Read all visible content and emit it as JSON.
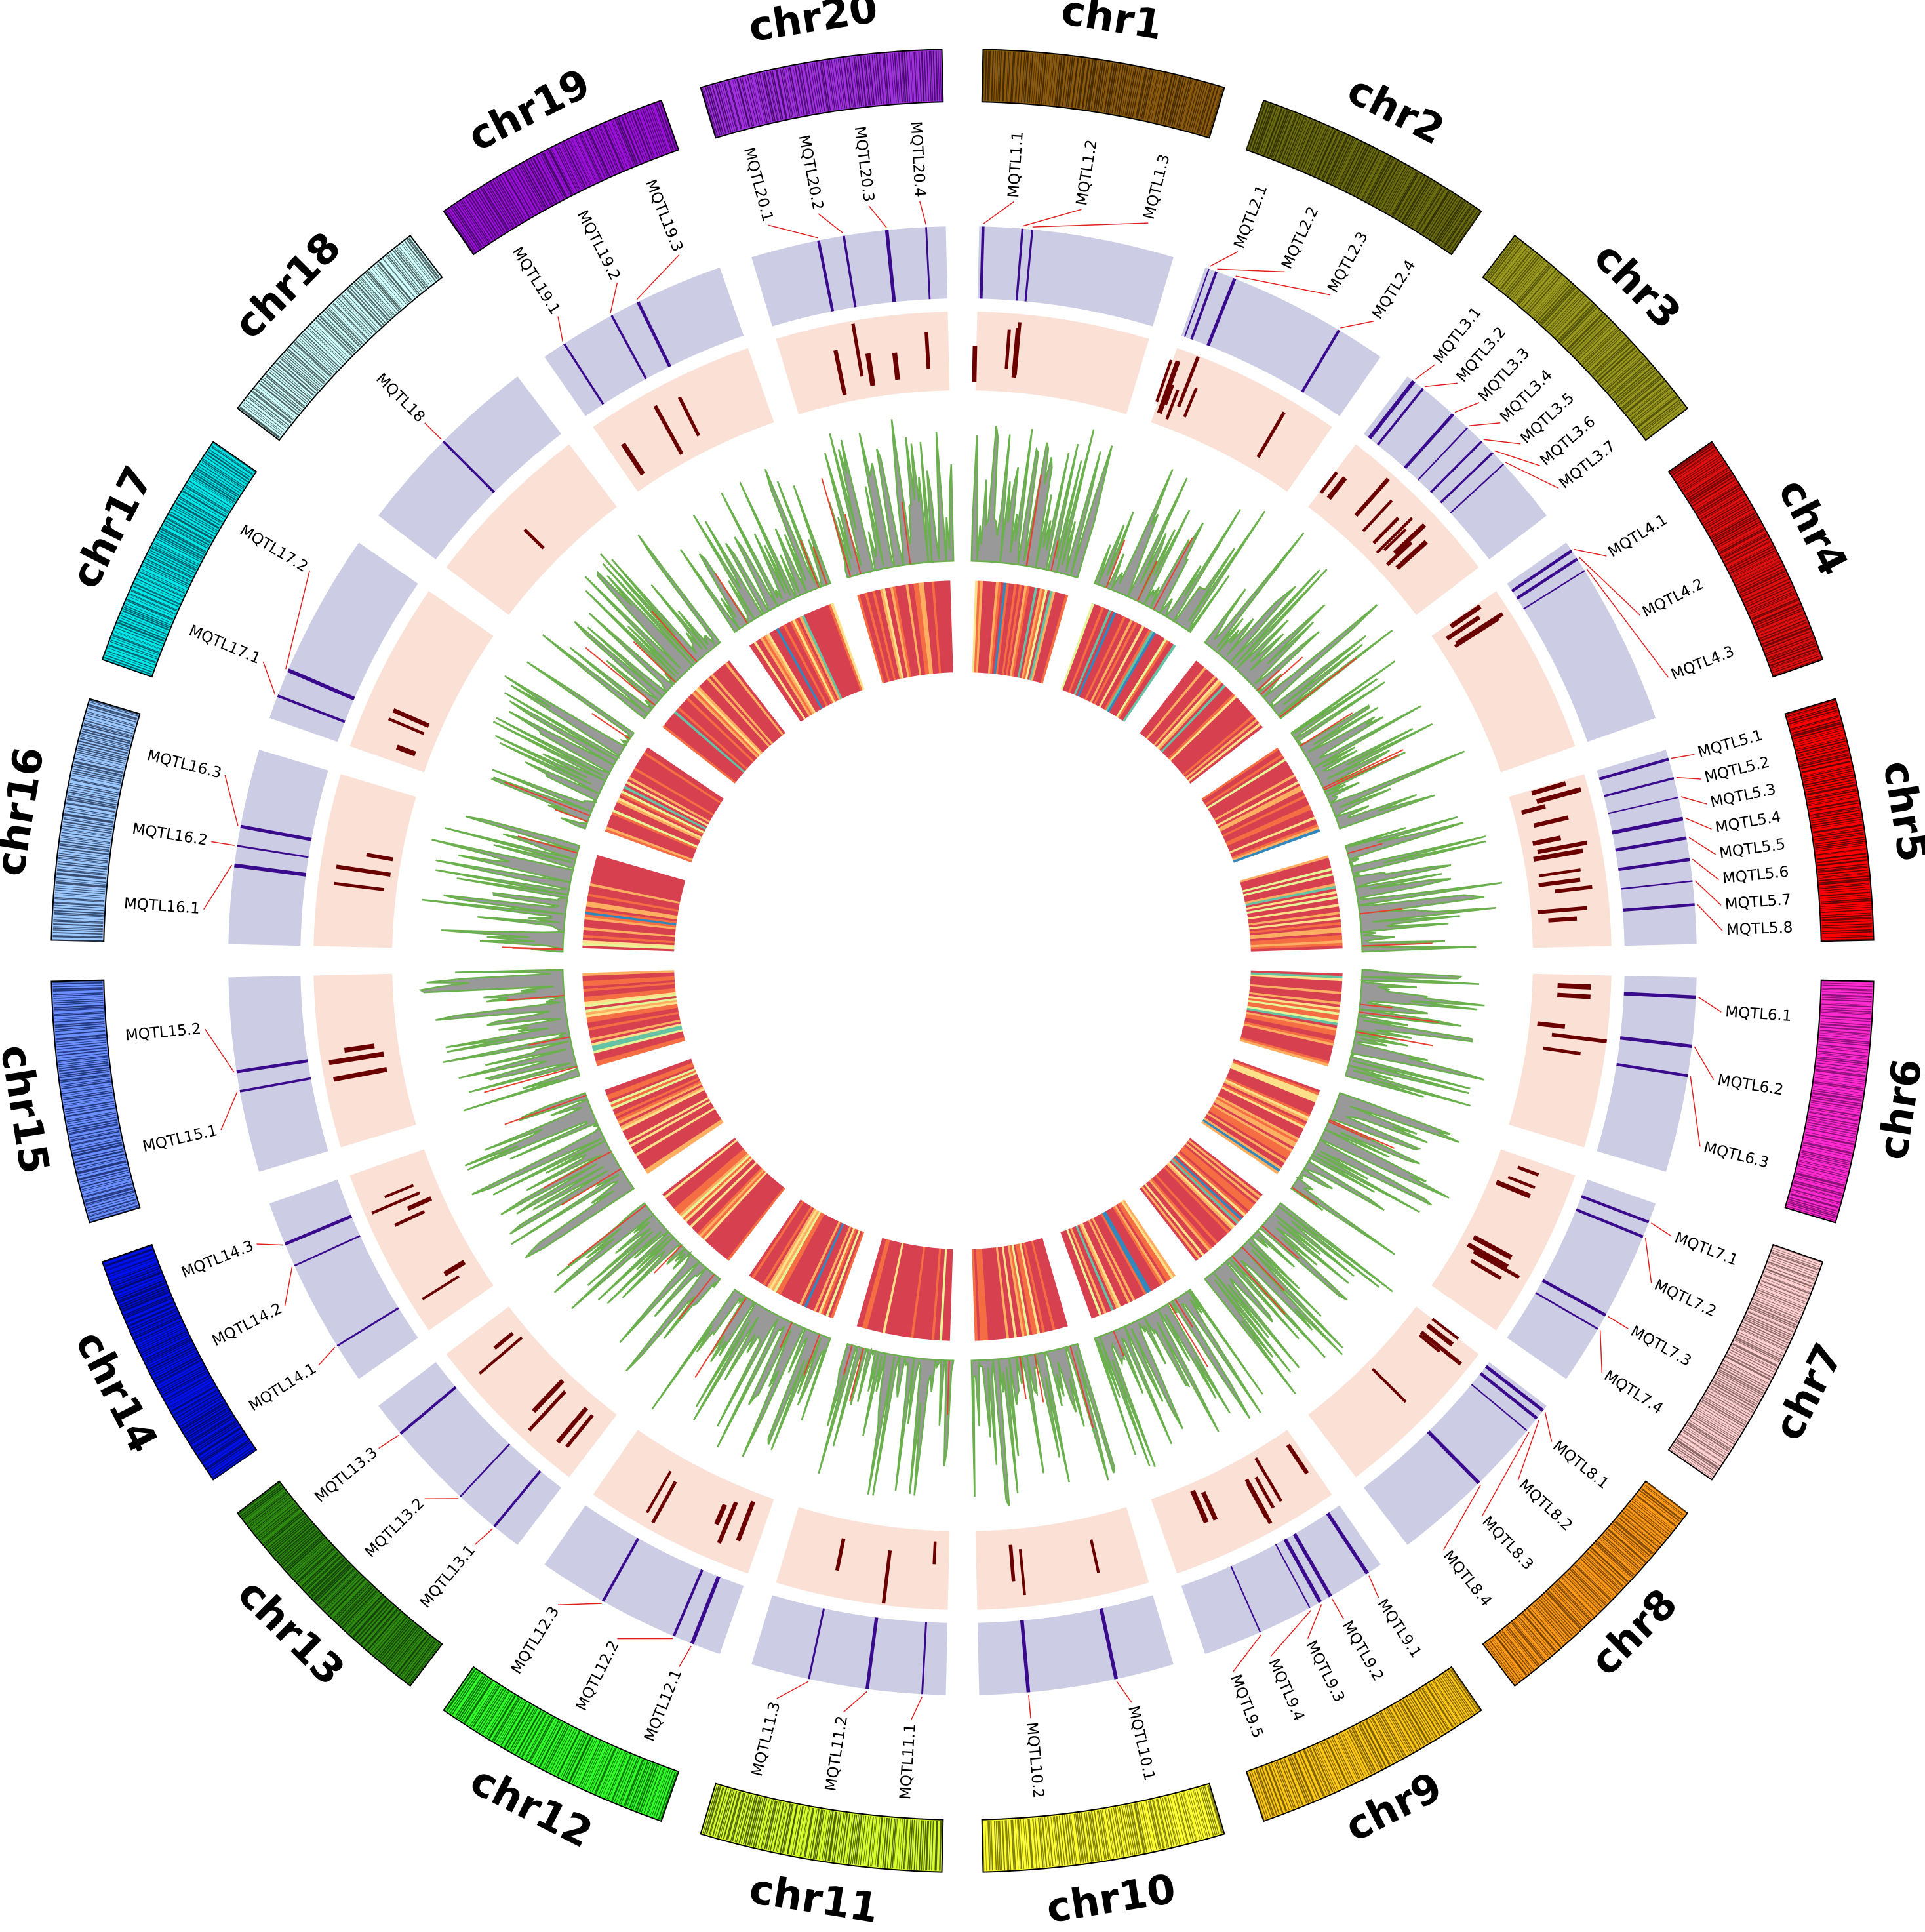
{
  "chromosomes": [
    {
      "name": "chr1",
      "color": "#8b5a0c",
      "dark": "#3b2406"
    },
    {
      "name": "chr2",
      "color": "#6b6b10",
      "dark": "#2a2a04"
    },
    {
      "name": "chr3",
      "color": "#9a9a20",
      "dark": "#4a4a08"
    },
    {
      "name": "chr4",
      "color": "#e01010",
      "dark": "#5a0505"
    },
    {
      "name": "chr5",
      "color": "#ff0000",
      "dark": "#4a0606"
    },
    {
      "name": "chr6",
      "color": "#ff2ad0",
      "dark": "#7a0e6a"
    },
    {
      "name": "chr7",
      "color": "#ffd0d0",
      "dark": "#7a5a5a"
    },
    {
      "name": "chr8",
      "color": "#ff9a18",
      "dark": "#6a3c06"
    },
    {
      "name": "chr9",
      "color": "#ffc814",
      "dark": "#6a5208"
    },
    {
      "name": "chr10",
      "color": "#ffff30",
      "dark": "#6a6a10"
    },
    {
      "name": "chr11",
      "color": "#d8ff2a",
      "dark": "#3a4a10"
    },
    {
      "name": "chr12",
      "color": "#30ff2a",
      "dark": "#0a5a08"
    },
    {
      "name": "chr13",
      "color": "#2e8a10",
      "dark": "#10380a"
    },
    {
      "name": "chr14",
      "color": "#0010e8",
      "dark": "#020a5a"
    },
    {
      "name": "chr15",
      "color": "#6a90ff",
      "dark": "#1a2a6a"
    },
    {
      "name": "chr16",
      "color": "#9ac8ff",
      "dark": "#2a3a5a"
    },
    {
      "name": "chr17",
      "color": "#00e8e8",
      "dark": "#0a4a5a"
    },
    {
      "name": "chr18",
      "color": "#d0ffff",
      "dark": "#3a4a4a"
    },
    {
      "name": "chr19",
      "color": "#9a10d8",
      "dark": "#3a0a5a"
    },
    {
      "name": "chr20",
      "color": "#a030e0",
      "dark": "#3a0a5a"
    }
  ],
  "qtls": [
    {
      "name": "MQTL1.1",
      "chr": 0,
      "pos": 0.02
    },
    {
      "name": "MQTL1.2",
      "chr": 0,
      "pos": 0.22
    },
    {
      "name": "MQTL1.3",
      "chr": 0,
      "pos": 0.27
    },
    {
      "name": "MQTL2.1",
      "chr": 1,
      "pos": 0.02
    },
    {
      "name": "MQTL2.2",
      "chr": 1,
      "pos": 0.06
    },
    {
      "name": "MQTL2.3",
      "chr": 1,
      "pos": 0.16
    },
    {
      "name": "MQTL2.4",
      "chr": 1,
      "pos": 0.75
    },
    {
      "name": "MQTL3.1",
      "chr": 2,
      "pos": 0.04
    },
    {
      "name": "MQTL3.2",
      "chr": 2,
      "pos": 0.1
    },
    {
      "name": "MQTL3.3",
      "chr": 2,
      "pos": 0.3
    },
    {
      "name": "MQTL3.4",
      "chr": 2,
      "pos": 0.4
    },
    {
      "name": "MQTL3.5",
      "chr": 2,
      "pos": 0.5
    },
    {
      "name": "MQTL3.6",
      "chr": 2,
      "pos": 0.58
    },
    {
      "name": "MQTL3.7",
      "chr": 2,
      "pos": 0.66
    },
    {
      "name": "MQTL4.1",
      "chr": 3,
      "pos": 0.05
    },
    {
      "name": "MQTL4.2",
      "chr": 3,
      "pos": 0.1
    },
    {
      "name": "MQTL4.3",
      "chr": 3,
      "pos": 0.17
    },
    {
      "name": "MQTL5.1",
      "chr": 4,
      "pos": 0.05
    },
    {
      "name": "MQTL5.2",
      "chr": 4,
      "pos": 0.15
    },
    {
      "name": "MQTL5.3",
      "chr": 4,
      "pos": 0.25
    },
    {
      "name": "MQTL5.4",
      "chr": 4,
      "pos": 0.36
    },
    {
      "name": "MQTL5.5",
      "chr": 4,
      "pos": 0.46
    },
    {
      "name": "MQTL5.6",
      "chr": 4,
      "pos": 0.57
    },
    {
      "name": "MQTL5.7",
      "chr": 4,
      "pos": 0.68
    },
    {
      "name": "MQTL5.8",
      "chr": 4,
      "pos": 0.8
    },
    {
      "name": "MQTL6.1",
      "chr": 5,
      "pos": 0.1
    },
    {
      "name": "MQTL6.2",
      "chr": 5,
      "pos": 0.35
    },
    {
      "name": "MQTL6.3",
      "chr": 5,
      "pos": 0.5
    },
    {
      "name": "MQTL7.1",
      "chr": 6,
      "pos": 0.1
    },
    {
      "name": "MQTL7.2",
      "chr": 6,
      "pos": 0.18
    },
    {
      "name": "MQTL7.3",
      "chr": 6,
      "pos": 0.62
    },
    {
      "name": "MQTL7.4",
      "chr": 6,
      "pos": 0.7
    },
    {
      "name": "MQTL8.1",
      "chr": 7,
      "pos": 0.03
    },
    {
      "name": "MQTL8.2",
      "chr": 7,
      "pos": 0.08
    },
    {
      "name": "MQTL8.3",
      "chr": 7,
      "pos": 0.16
    },
    {
      "name": "MQTL8.4",
      "chr": 7,
      "pos": 0.52
    },
    {
      "name": "MQTL9.1",
      "chr": 8,
      "pos": 0.08
    },
    {
      "name": "MQTL9.2",
      "chr": 8,
      "pos": 0.3
    },
    {
      "name": "MQTL9.3",
      "chr": 8,
      "pos": 0.36
    },
    {
      "name": "MQTL9.4",
      "chr": 8,
      "pos": 0.42
    },
    {
      "name": "MQTL9.5",
      "chr": 8,
      "pos": 0.7
    },
    {
      "name": "MQTL10.1",
      "chr": 9,
      "pos": 0.3
    },
    {
      "name": "MQTL10.2",
      "chr": 9,
      "pos": 0.75
    },
    {
      "name": "MQTL11.1",
      "chr": 10,
      "pos": 0.12
    },
    {
      "name": "MQTL11.2",
      "chr": 10,
      "pos": 0.4
    },
    {
      "name": "MQTL11.3",
      "chr": 10,
      "pos": 0.7
    },
    {
      "name": "MQTL12.1",
      "chr": 11,
      "pos": 0.15
    },
    {
      "name": "MQTL12.2",
      "chr": 11,
      "pos": 0.25
    },
    {
      "name": "MQTL12.3",
      "chr": 11,
      "pos": 0.65
    },
    {
      "name": "MQTL13.1",
      "chr": 12,
      "pos": 0.15
    },
    {
      "name": "MQTL13.2",
      "chr": 12,
      "pos": 0.38
    },
    {
      "name": "MQTL13.3",
      "chr": 12,
      "pos": 0.82
    },
    {
      "name": "MQTL14.1",
      "chr": 13,
      "pos": 0.2
    },
    {
      "name": "MQTL14.2",
      "chr": 13,
      "pos": 0.66
    },
    {
      "name": "MQTL14.3",
      "chr": 13,
      "pos": 0.78
    },
    {
      "name": "MQTL15.1",
      "chr": 14,
      "pos": 0.42
    },
    {
      "name": "MQTL15.2",
      "chr": 14,
      "pos": 0.52
    },
    {
      "name": "MQTL16.1",
      "chr": 15,
      "pos": 0.4
    },
    {
      "name": "MQTL16.2",
      "chr": 15,
      "pos": 0.5
    },
    {
      "name": "MQTL16.3",
      "chr": 15,
      "pos": 0.6
    },
    {
      "name": "MQTL17.1",
      "chr": 16,
      "pos": 0.12
    },
    {
      "name": "MQTL17.2",
      "chr": 16,
      "pos": 0.26
    },
    {
      "name": "MQTL18",
      "chr": 17,
      "pos": 0.5
    },
    {
      "name": "MQTL19.1",
      "chr": 18,
      "pos": 0.12
    },
    {
      "name": "MQTL19.2",
      "chr": 18,
      "pos": 0.4
    },
    {
      "name": "MQTL19.3",
      "chr": 18,
      "pos": 0.55
    },
    {
      "name": "MQTL20.1",
      "chr": 19,
      "pos": 0.35
    },
    {
      "name": "MQTL20.2",
      "chr": 19,
      "pos": 0.48
    },
    {
      "name": "MQTL20.3",
      "chr": 19,
      "pos": 0.7
    },
    {
      "name": "MQTL20.4",
      "chr": 19,
      "pos": 0.9
    }
  ],
  "colors": {
    "qtl_track": "#cccce4",
    "qtl_mark": "#3a0a8c",
    "peak_track": "#fbe0d6",
    "peak_mark": "#6a0000",
    "leader": "#e02020",
    "hist_fill": "#999999",
    "hist_line": "#6ab04c",
    "hist_red": "#e84030",
    "heat_palette": [
      "#d7404f",
      "#f46d43",
      "#fdae61",
      "#fee08b",
      "#e6f598",
      "#66c2a5",
      "#3288bd"
    ]
  }
}
